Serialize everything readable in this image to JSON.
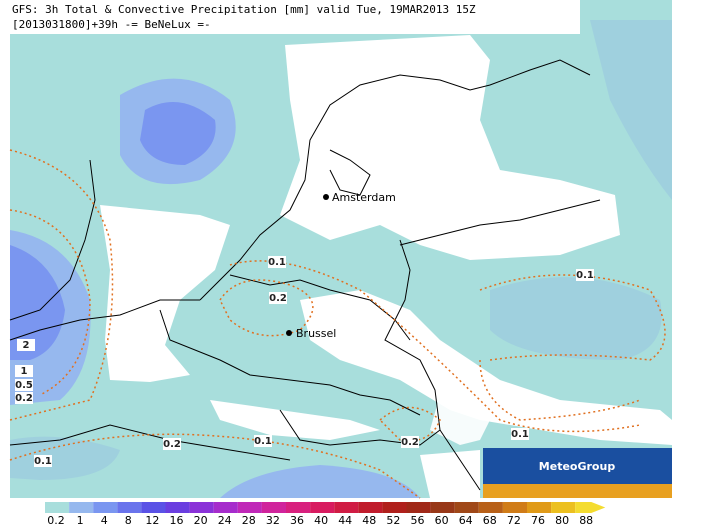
{
  "header": {
    "line1": "GFS: 3h Total & Convective Precipitation [mm] valid Tue, 19MAR2013 15Z",
    "line2": "[2013031800]+39h -= BeNeLux =-"
  },
  "cities": [
    "Amsterdam",
    "Brussel"
  ],
  "contour_labels": [
    "0.1",
    "0.2",
    "0.1",
    "0.1",
    "0.2",
    "0.1",
    "0.2",
    "0.1",
    "2",
    "1",
    "0.5",
    "0.2"
  ],
  "logo": "MeteoGroup",
  "legend": {
    "labels": [
      "0.2",
      "1",
      "4",
      "8",
      "12",
      "16",
      "20",
      "24",
      "28",
      "32",
      "36",
      "40",
      "44",
      "48",
      "52",
      "56",
      "60",
      "64",
      "68",
      "72",
      "76",
      "80",
      "88"
    ],
    "colors": [
      "#a8dedc",
      "#96b8ee",
      "#7a96f0",
      "#6a74ec",
      "#5a52e6",
      "#6a3ee0",
      "#8a32d8",
      "#a62ccc",
      "#c028b8",
      "#d0249c",
      "#d8207e",
      "#d81c60",
      "#d01c44",
      "#c01c2c",
      "#b0201c",
      "#a02818",
      "#983818",
      "#a04818",
      "#b86018",
      "#d07c18",
      "#e09a18",
      "#ecc020",
      "#f4dc30"
    ]
  }
}
